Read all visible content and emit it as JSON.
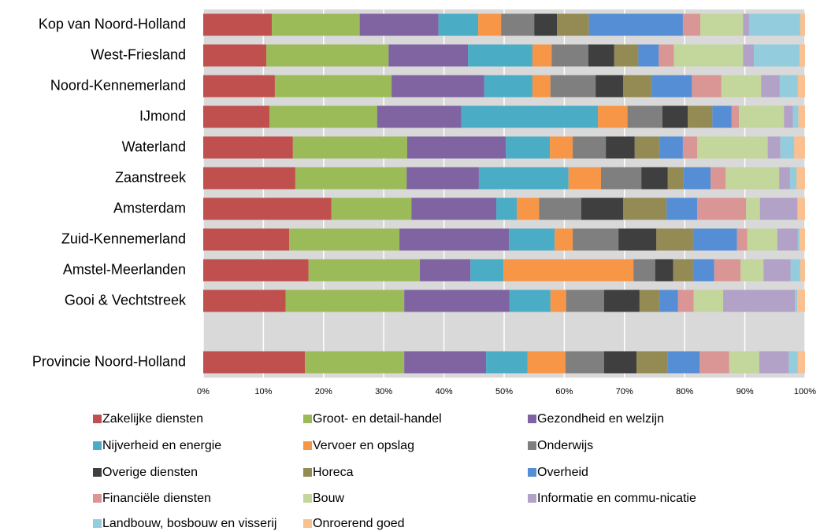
{
  "chart_data": {
    "type": "stacked_barh",
    "categories": [
      "Kop van Noord-Holland",
      "West-Friesland",
      "Noord-Kennemerland",
      "IJmond",
      "Waterland",
      "Zaanstreek",
      "Amsterdam",
      "Zuid-Kennemerland",
      "Amstel-Meerlanden",
      "Gooi & Vechtstreek",
      null,
      "Provincie Noord-Holland"
    ],
    "series": [
      {
        "name": "Zakelijke diensten",
        "color": "#c0504d",
        "values": [
          11.4,
          10.5,
          11.9,
          11.0,
          14.9,
          15.3,
          21.3,
          14.3,
          17.5,
          13.7,
          null,
          16.9
        ]
      },
      {
        "name": "Groot- en detail-handel",
        "color": "#9bbb59",
        "values": [
          14.6,
          20.3,
          19.4,
          17.9,
          19.0,
          18.5,
          13.3,
          18.3,
          18.5,
          19.7,
          null,
          16.5
        ]
      },
      {
        "name": "Gezondheid en welzijn",
        "color": "#8064a2",
        "values": [
          13.1,
          13.2,
          15.4,
          14.0,
          16.4,
          12.0,
          14.1,
          18.2,
          8.4,
          17.5,
          null,
          13.6
        ]
      },
      {
        "name": "Nijverheid en energie",
        "color": "#4bacc6",
        "values": [
          6.6,
          10.7,
          8.0,
          22.7,
          7.3,
          14.9,
          3.4,
          7.6,
          5.5,
          6.8,
          null,
          6.9
        ]
      },
      {
        "name": "Vervoer en opslag",
        "color": "#f79646",
        "values": [
          3.8,
          3.2,
          3.0,
          4.9,
          3.8,
          5.4,
          3.7,
          3.0,
          21.6,
          2.6,
          null,
          6.3
        ]
      },
      {
        "name": "Onderwijs",
        "color": "#7f7f7f",
        "values": [
          5.5,
          6.1,
          7.5,
          5.8,
          5.5,
          6.7,
          7.0,
          7.6,
          3.6,
          6.3,
          null,
          6.4
        ]
      },
      {
        "name": "Overige diensten",
        "color": "#3f3f3f",
        "values": [
          3.8,
          4.3,
          4.6,
          4.2,
          4.8,
          4.4,
          7.0,
          6.3,
          3.0,
          5.9,
          null,
          5.4
        ]
      },
      {
        "name": "Horeca",
        "color": "#948a54",
        "values": [
          5.3,
          4.0,
          4.7,
          4.1,
          4.2,
          2.6,
          7.2,
          6.1,
          3.3,
          3.4,
          null,
          5.2
        ]
      },
      {
        "name": "Overheid",
        "color": "#558ed5",
        "values": [
          15.6,
          3.4,
          6.7,
          3.2,
          3.8,
          4.5,
          5.1,
          7.3,
          3.5,
          3.0,
          null,
          5.3
        ]
      },
      {
        "name": "Financiële diensten",
        "color": "#da9694",
        "values": [
          2.9,
          2.5,
          4.9,
          1.2,
          2.4,
          2.5,
          8.1,
          1.7,
          4.4,
          2.6,
          null,
          4.9
        ]
      },
      {
        "name": "Bouw",
        "color": "#c3d69b",
        "values": [
          7.1,
          11.5,
          6.6,
          7.5,
          11.7,
          8.9,
          2.3,
          5.0,
          3.8,
          4.9,
          null,
          5.0
        ]
      },
      {
        "name": "Informatie en commu-nicatie",
        "color": "#b3a2c7",
        "values": [
          1.0,
          1.8,
          3.1,
          1.5,
          2.1,
          1.8,
          6.2,
          3.4,
          4.5,
          11.9,
          null,
          4.9
        ]
      },
      {
        "name": "Landbouw, bosbouw en visserij",
        "color": "#93cddd",
        "values": [
          8.5,
          7.6,
          3.0,
          0.9,
          2.3,
          1.1,
          0.1,
          0.3,
          1.6,
          0.4,
          null,
          1.5
        ]
      },
      {
        "name": "Onroerend goed",
        "color": "#fac090",
        "values": [
          0.8,
          0.9,
          1.2,
          1.1,
          1.8,
          1.4,
          1.2,
          0.9,
          0.8,
          1.3,
          null,
          1.2
        ]
      }
    ],
    "xlim": [
      0,
      100
    ],
    "xticks": [
      {
        "value": 0,
        "label": "0%"
      },
      {
        "value": 10,
        "label": "10%"
      },
      {
        "value": 20,
        "label": "20%"
      },
      {
        "value": 30,
        "label": "30%"
      },
      {
        "value": 40,
        "label": "40%"
      },
      {
        "value": 50,
        "label": "50%"
      },
      {
        "value": 60,
        "label": "60%"
      },
      {
        "value": 70,
        "label": "70%"
      },
      {
        "value": 80,
        "label": "80%"
      },
      {
        "value": 90,
        "label": "90%"
      },
      {
        "value": 100,
        "label": "100%"
      }
    ],
    "grid": true
  }
}
